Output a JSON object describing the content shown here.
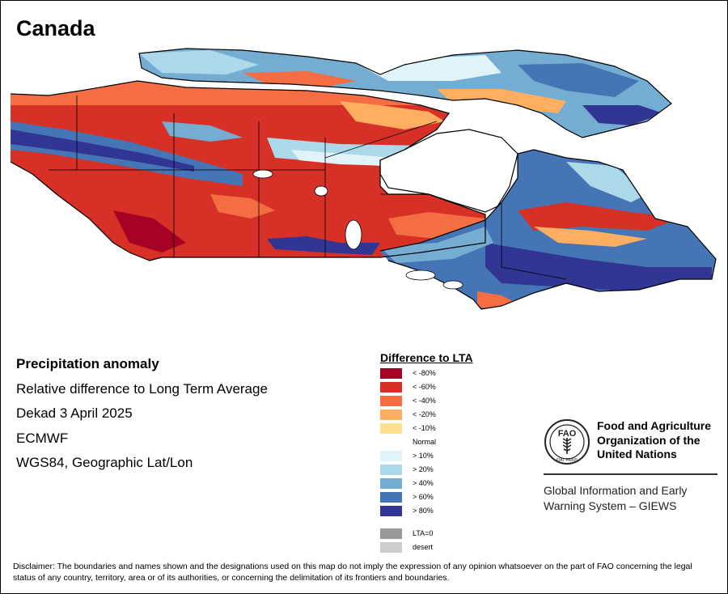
{
  "map_title": "Canada",
  "info": {
    "heading": "Precipitation anomaly",
    "subtitle": "Relative difference to Long Term Average",
    "period": "Dekad 3 April 2025",
    "source": "ECMWF",
    "projection": "WGS84, Geographic Lat/Lon"
  },
  "legend": {
    "title": "Difference to LTA",
    "items": [
      {
        "label": "< -80%",
        "color": "#a50026"
      },
      {
        "label": "< -60%",
        "color": "#d73027"
      },
      {
        "label": "< -40%",
        "color": "#f46d43"
      },
      {
        "label": "< -20%",
        "color": "#fdae61"
      },
      {
        "label": "< -10%",
        "color": "#fee090"
      },
      {
        "label": "Normal",
        "color": "#ffffff"
      },
      {
        "label": "> 10%",
        "color": "#e0f3f8"
      },
      {
        "label": "> 20%",
        "color": "#abd9e9"
      },
      {
        "label": "> 40%",
        "color": "#74add1"
      },
      {
        "label": "> 60%",
        "color": "#4575b4"
      },
      {
        "label": "> 80%",
        "color": "#313695"
      }
    ],
    "extra": [
      {
        "label": "LTA=0",
        "color": "#999999"
      },
      {
        "label": "desert",
        "color": "#cccccc"
      }
    ]
  },
  "organization": {
    "logo_letters": "FAO",
    "logo_motto": "FIAT PANIS",
    "name_line1": "Food and Agriculture",
    "name_line2": "Organization of the",
    "name_line3": "United Nations",
    "system_line1": "Global Information and Early",
    "system_line2": "Warning System – GIEWS"
  },
  "disclaimer": "Disclaimer: The boundaries and names shown and the designations used on this map do not imply the expression of any opinion whatsoever on the part of FAO concerning the legal status of any country, territory, area or of its authorities, or concerning the delimitation of its frontiers and boundaries."
}
